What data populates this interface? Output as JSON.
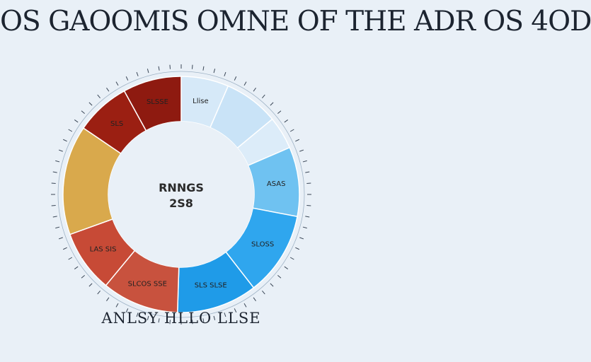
{
  "title": "OS GAOOMIS OMNE OF THE ADR OS 4OD",
  "bottom_caption": "ANLSY HLLO LLSE",
  "center": {
    "line1": "RNNGS",
    "line2": "2S8"
  },
  "colors": {
    "background": "#e9f0f7",
    "stroke": "#ffffff"
  },
  "chart_data": {
    "type": "pie",
    "donut": true,
    "title": "OS GAOOMIS OMNE OF THE ADR OS 4OD",
    "start_angle_deg": 0,
    "slices": [
      {
        "label": "Llise",
        "value": 6.5,
        "color": "#d6e9f8"
      },
      {
        "label": "",
        "value": 7.5,
        "color": "#c9e3f7"
      },
      {
        "label": "",
        "value": 4.5,
        "color": "#dcecf9"
      },
      {
        "label": "ASAS",
        "value": 9.5,
        "color": "#6fc2f1"
      },
      {
        "label": "SLOSS",
        "value": 11.5,
        "color": "#2fa6ee"
      },
      {
        "label": "SLS SLSE",
        "value": 11,
        "color": "#1f9be8"
      },
      {
        "label": "SLCOS SSE",
        "value": 10.5,
        "color": "#c8523e"
      },
      {
        "label": "LAS SIS",
        "value": 8.5,
        "color": "#c74a36"
      },
      {
        "label": "",
        "value": 15,
        "color": "#d9a94c"
      },
      {
        "label": "SLS",
        "value": 7.5,
        "color": "#9b1f12"
      },
      {
        "label": "SLSSE",
        "value": 8,
        "color": "#8e1a10"
      }
    ]
  }
}
